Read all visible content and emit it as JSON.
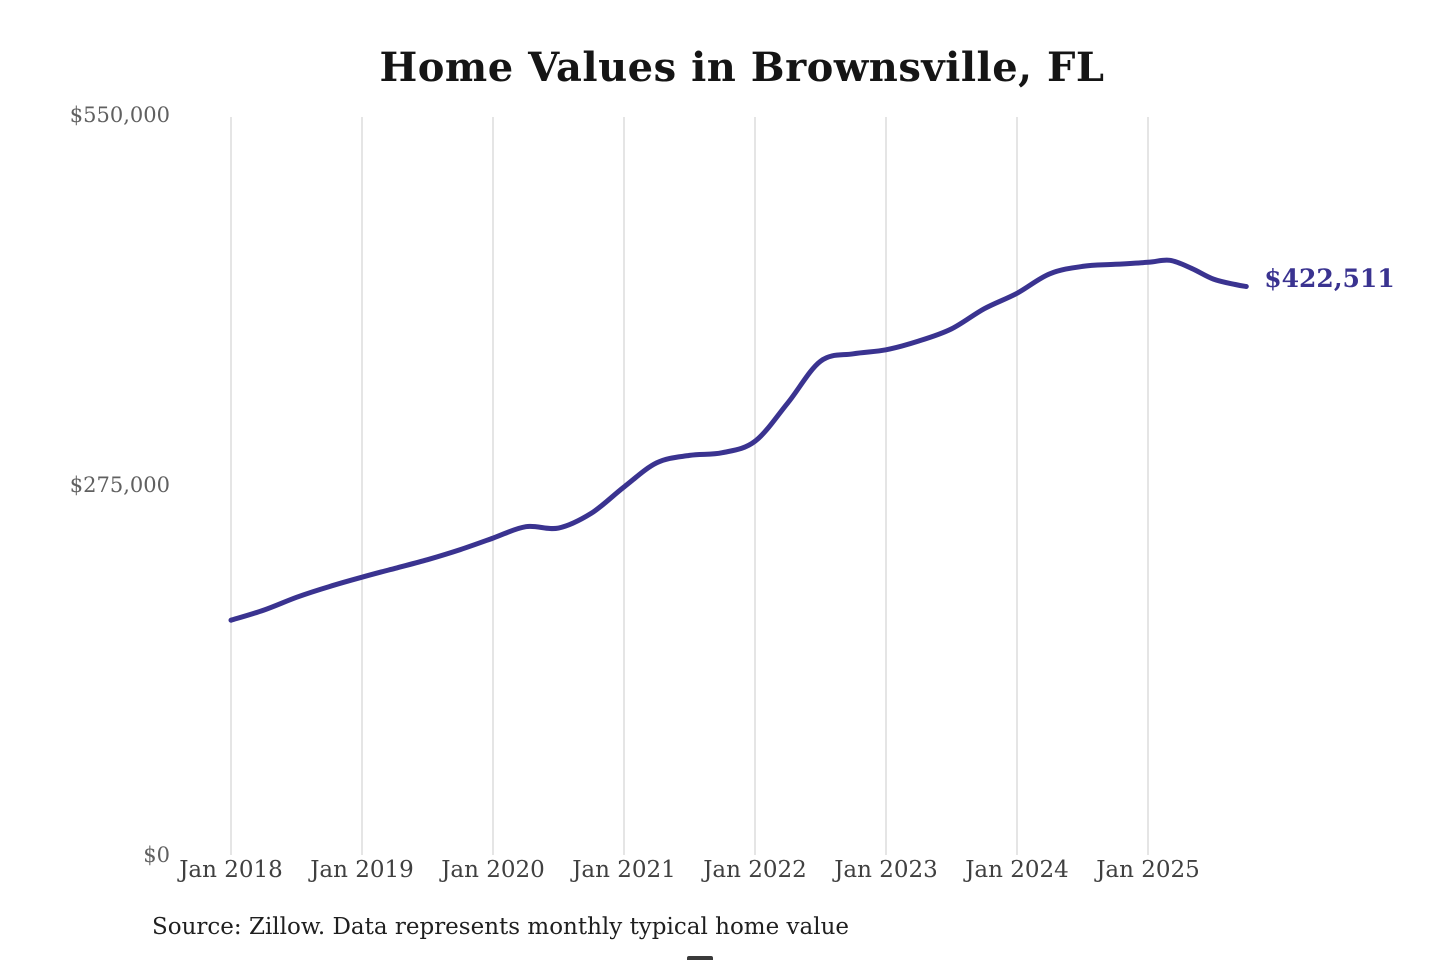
{
  "page": {
    "background": "#ffffff"
  },
  "chart_data": {
    "type": "line",
    "title": "Home Values in Brownsville, FL",
    "xlabel": "",
    "ylabel": "",
    "ylim": [
      0,
      550000
    ],
    "grid": "vertical-only",
    "legend": "none",
    "y_ticks": [
      {
        "value": 0,
        "label": "$0"
      },
      {
        "value": 275000,
        "label": "$275,000"
      },
      {
        "value": 550000,
        "label": "$550,000"
      }
    ],
    "x_ticks": [
      {
        "date": "2018-01",
        "label": "Jan 2018"
      },
      {
        "date": "2019-01",
        "label": "Jan 2019"
      },
      {
        "date": "2020-01",
        "label": "Jan 2020"
      },
      {
        "date": "2021-01",
        "label": "Jan 2021"
      },
      {
        "date": "2022-01",
        "label": "Jan 2022"
      },
      {
        "date": "2023-01",
        "label": "Jan 2023"
      },
      {
        "date": "2024-01",
        "label": "Jan 2024"
      },
      {
        "date": "2025-01",
        "label": "Jan 2025"
      }
    ],
    "series": [
      {
        "points": [
          [
            "2018-01",
            174500
          ],
          [
            "2018-04",
            182000
          ],
          [
            "2018-07",
            191500
          ],
          [
            "2018-10",
            199500
          ],
          [
            "2019-01",
            206500
          ],
          [
            "2019-04",
            213000
          ],
          [
            "2019-07",
            219500
          ],
          [
            "2019-10",
            227000
          ],
          [
            "2020-01",
            235500
          ],
          [
            "2020-04",
            244000
          ],
          [
            "2020-07",
            243000
          ],
          [
            "2020-10",
            254000
          ],
          [
            "2021-01",
            273500
          ],
          [
            "2021-04",
            291500
          ],
          [
            "2021-07",
            297000
          ],
          [
            "2021-10",
            299000
          ],
          [
            "2022-01",
            307500
          ],
          [
            "2022-04",
            336000
          ],
          [
            "2022-07",
            367000
          ],
          [
            "2022-10",
            372500
          ],
          [
            "2023-01",
            375500
          ],
          [
            "2023-04",
            382000
          ],
          [
            "2023-07",
            391000
          ],
          [
            "2023-10",
            406000
          ],
          [
            "2024-01",
            417500
          ],
          [
            "2024-04",
            432000
          ],
          [
            "2024-07",
            437500
          ],
          [
            "2024-10",
            439000
          ],
          [
            "2025-01",
            440500
          ],
          [
            "2025-03",
            442000
          ],
          [
            "2025-05",
            436000
          ],
          [
            "2025-07",
            428000
          ],
          [
            "2025-09",
            424000
          ],
          [
            "2025-10",
            422511
          ]
        ]
      }
    ],
    "end_value": 422511,
    "end_label": "$422,511",
    "source_note": "Source: Zillow. Data represents monthly typical home value",
    "colors": {
      "line": "#3a3390",
      "end_label": "#3a3390",
      "grid": "#cbcbcb",
      "y_tick_text": "#606060",
      "x_tick_text": "#404040",
      "title_text": "#151515",
      "source_text": "#1f1f1f"
    }
  }
}
